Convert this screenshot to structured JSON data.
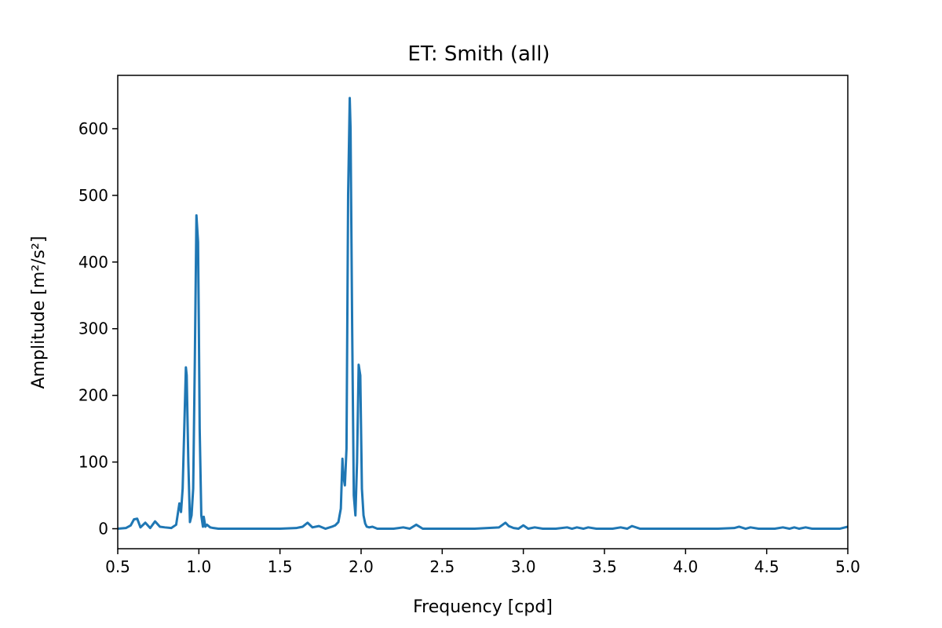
{
  "chart_data": {
    "type": "line",
    "title": "ET: Smith (all)",
    "xlabel": "Frequency [cpd]",
    "ylabel": "Amplitude [m²/s²]",
    "xlim": [
      0.5,
      5.0
    ],
    "ylim": [
      -30,
      680
    ],
    "xticks": [
      "0.5",
      "1.0",
      "1.5",
      "2.0",
      "2.5",
      "3.0",
      "3.5",
      "4.0",
      "4.5",
      "5.0"
    ],
    "yticks": [
      "0",
      "100",
      "200",
      "300",
      "400",
      "500",
      "600"
    ],
    "grid": false,
    "series": [
      {
        "color": "#1f77b4",
        "x": [
          0.5,
          0.55,
          0.58,
          0.6,
          0.62,
          0.64,
          0.67,
          0.7,
          0.73,
          0.76,
          0.79,
          0.83,
          0.86,
          0.88,
          0.89,
          0.9,
          0.91,
          0.92,
          0.925,
          0.935,
          0.945,
          0.955,
          0.965,
          0.975,
          0.985,
          0.995,
          1.0,
          1.005,
          1.015,
          1.025,
          1.03,
          1.04,
          1.05,
          1.07,
          1.09,
          1.12,
          1.2,
          1.3,
          1.4,
          1.5,
          1.6,
          1.64,
          1.67,
          1.7,
          1.74,
          1.78,
          1.82,
          1.84,
          1.86,
          1.875,
          1.885,
          1.89,
          1.9,
          1.91,
          1.92,
          1.93,
          1.935,
          1.945,
          1.955,
          1.965,
          1.975,
          1.985,
          1.995,
          2.005,
          2.015,
          2.025,
          2.035,
          2.05,
          2.07,
          2.1,
          2.2,
          2.26,
          2.3,
          2.34,
          2.38,
          2.5,
          2.7,
          2.85,
          2.89,
          2.91,
          2.94,
          2.97,
          3.0,
          3.03,
          3.07,
          3.12,
          3.2,
          3.27,
          3.3,
          3.33,
          3.37,
          3.4,
          3.45,
          3.55,
          3.6,
          3.64,
          3.67,
          3.72,
          3.8,
          4.0,
          4.2,
          4.3,
          4.33,
          4.37,
          4.4,
          4.45,
          4.55,
          4.6,
          4.64,
          4.67,
          4.7,
          4.74,
          4.78,
          4.85,
          4.95,
          5.0
        ],
        "y": [
          0,
          1,
          5,
          14,
          15,
          2,
          9,
          1,
          11,
          3,
          2,
          1,
          6,
          38,
          25,
          60,
          150,
          242,
          230,
          100,
          10,
          20,
          60,
          250,
          470,
          430,
          300,
          150,
          20,
          3,
          18,
          3,
          6,
          2,
          1,
          0,
          0,
          0,
          0,
          0,
          1,
          3,
          9,
          2,
          4,
          0,
          3,
          5,
          10,
          30,
          105,
          80,
          65,
          120,
          500,
          646,
          600,
          300,
          50,
          20,
          100,
          246,
          230,
          60,
          20,
          8,
          3,
          2,
          3,
          0,
          0,
          2,
          0,
          6,
          0,
          0,
          0,
          2,
          9,
          4,
          1,
          0,
          5,
          0,
          2,
          0,
          0,
          2,
          0,
          2,
          0,
          2,
          0,
          0,
          2,
          0,
          4,
          0,
          0,
          0,
          0,
          1,
          3,
          0,
          2,
          0,
          0,
          2,
          0,
          2,
          0,
          2,
          0,
          0,
          0,
          3
        ]
      }
    ]
  }
}
